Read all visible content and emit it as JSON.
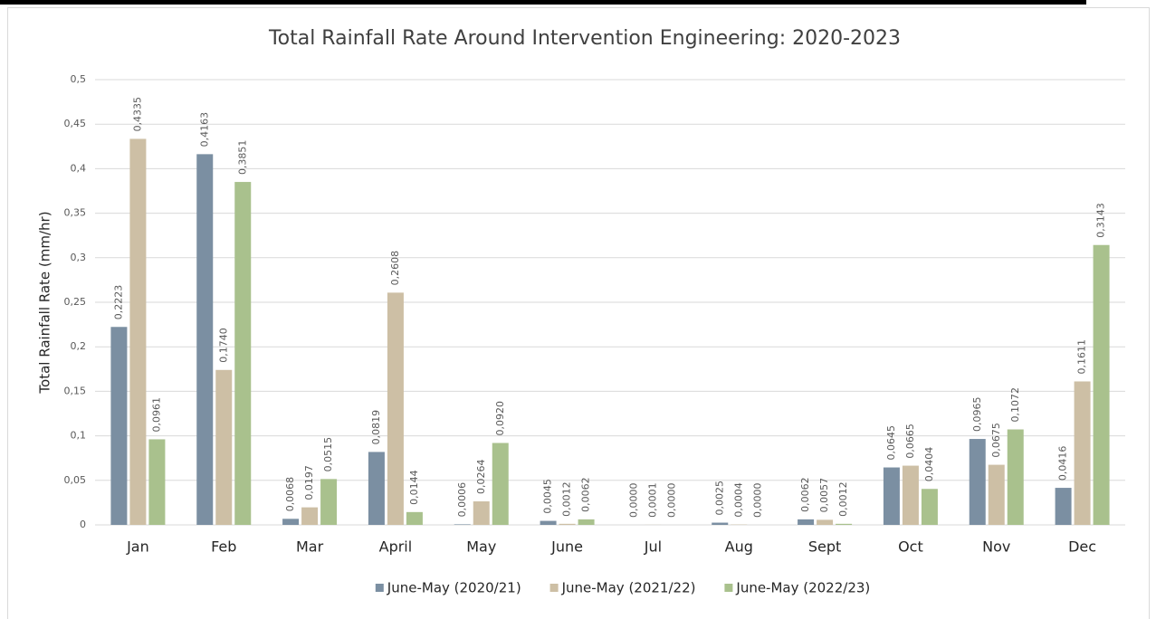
{
  "chart_data": {
    "type": "bar",
    "title": "Total Rainfall Rate Around Intervention Engineering: 2020-2023",
    "y_label": "Total Rainfall Rate (mm/hr)",
    "categories": [
      "Jan",
      "Feb",
      "Mar",
      "April",
      "May",
      "June",
      "Jul",
      "Aug",
      "Sept",
      "Oct",
      "Nov",
      "Dec"
    ],
    "series": [
      {
        "name": "June-May (2020/21)",
        "color": "#7b8fa2",
        "values": [
          0.2223,
          0.4163,
          0.0068,
          0.0819,
          0.0006,
          0.0045,
          0.0,
          0.0025,
          0.0062,
          0.0645,
          0.0965,
          0.0416
        ],
        "value_labels": [
          "0,2223",
          "0,4163",
          "0,0068",
          "0,0819",
          "0,0006",
          "0,0045",
          "0,0000",
          "0,0025",
          "0,0062",
          "0,0645",
          "0,0965",
          "0,0416"
        ]
      },
      {
        "name": "June-May (2021/22)",
        "color": "#cdbfa5",
        "values": [
          0.4335,
          0.174,
          0.0197,
          0.2608,
          0.0264,
          0.0012,
          0.0001,
          0.0004,
          0.0057,
          0.0665,
          0.0675,
          0.1611
        ],
        "value_labels": [
          "0,4335",
          "0,1740",
          "0,0197",
          "0,2608",
          "0,0264",
          "0,0012",
          "0,0001",
          "0,0004",
          "0,0057",
          "0,0665",
          "0,0675",
          "0,1611"
        ]
      },
      {
        "name": "June-May (2022/23)",
        "color": "#a9c18d",
        "values": [
          0.0961,
          0.3851,
          0.0515,
          0.0144,
          0.092,
          0.0062,
          0.0,
          0.0,
          0.0012,
          0.0404,
          0.1072,
          0.3143
        ],
        "value_labels": [
          "0,0961",
          "0,3851",
          "0,0515",
          "0,0144",
          "0,0920",
          "0,0062",
          "0,0000",
          "0,0000",
          "0,0012",
          "0,0404",
          "0,1072",
          "0,3143"
        ]
      }
    ],
    "ylim": [
      0,
      0.5
    ],
    "yticks": [
      0,
      {
        "value": 0.05,
        "label": "0,05"
      },
      {
        "value": 0.1,
        "label": "0,1"
      },
      {
        "value": 0.15,
        "label": "0,15"
      },
      {
        "value": 0.2,
        "label": "0,2"
      },
      {
        "value": 0.25,
        "label": "0,25"
      },
      {
        "value": 0.3,
        "label": "0,3"
      },
      {
        "value": 0.35,
        "label": "0,35"
      },
      {
        "value": 0.4,
        "label": "0,4"
      },
      {
        "value": 0.45,
        "label": "0,45"
      },
      {
        "value": 0.5,
        "label": "0,5"
      }
    ],
    "grid": true,
    "legend": "bottom"
  }
}
